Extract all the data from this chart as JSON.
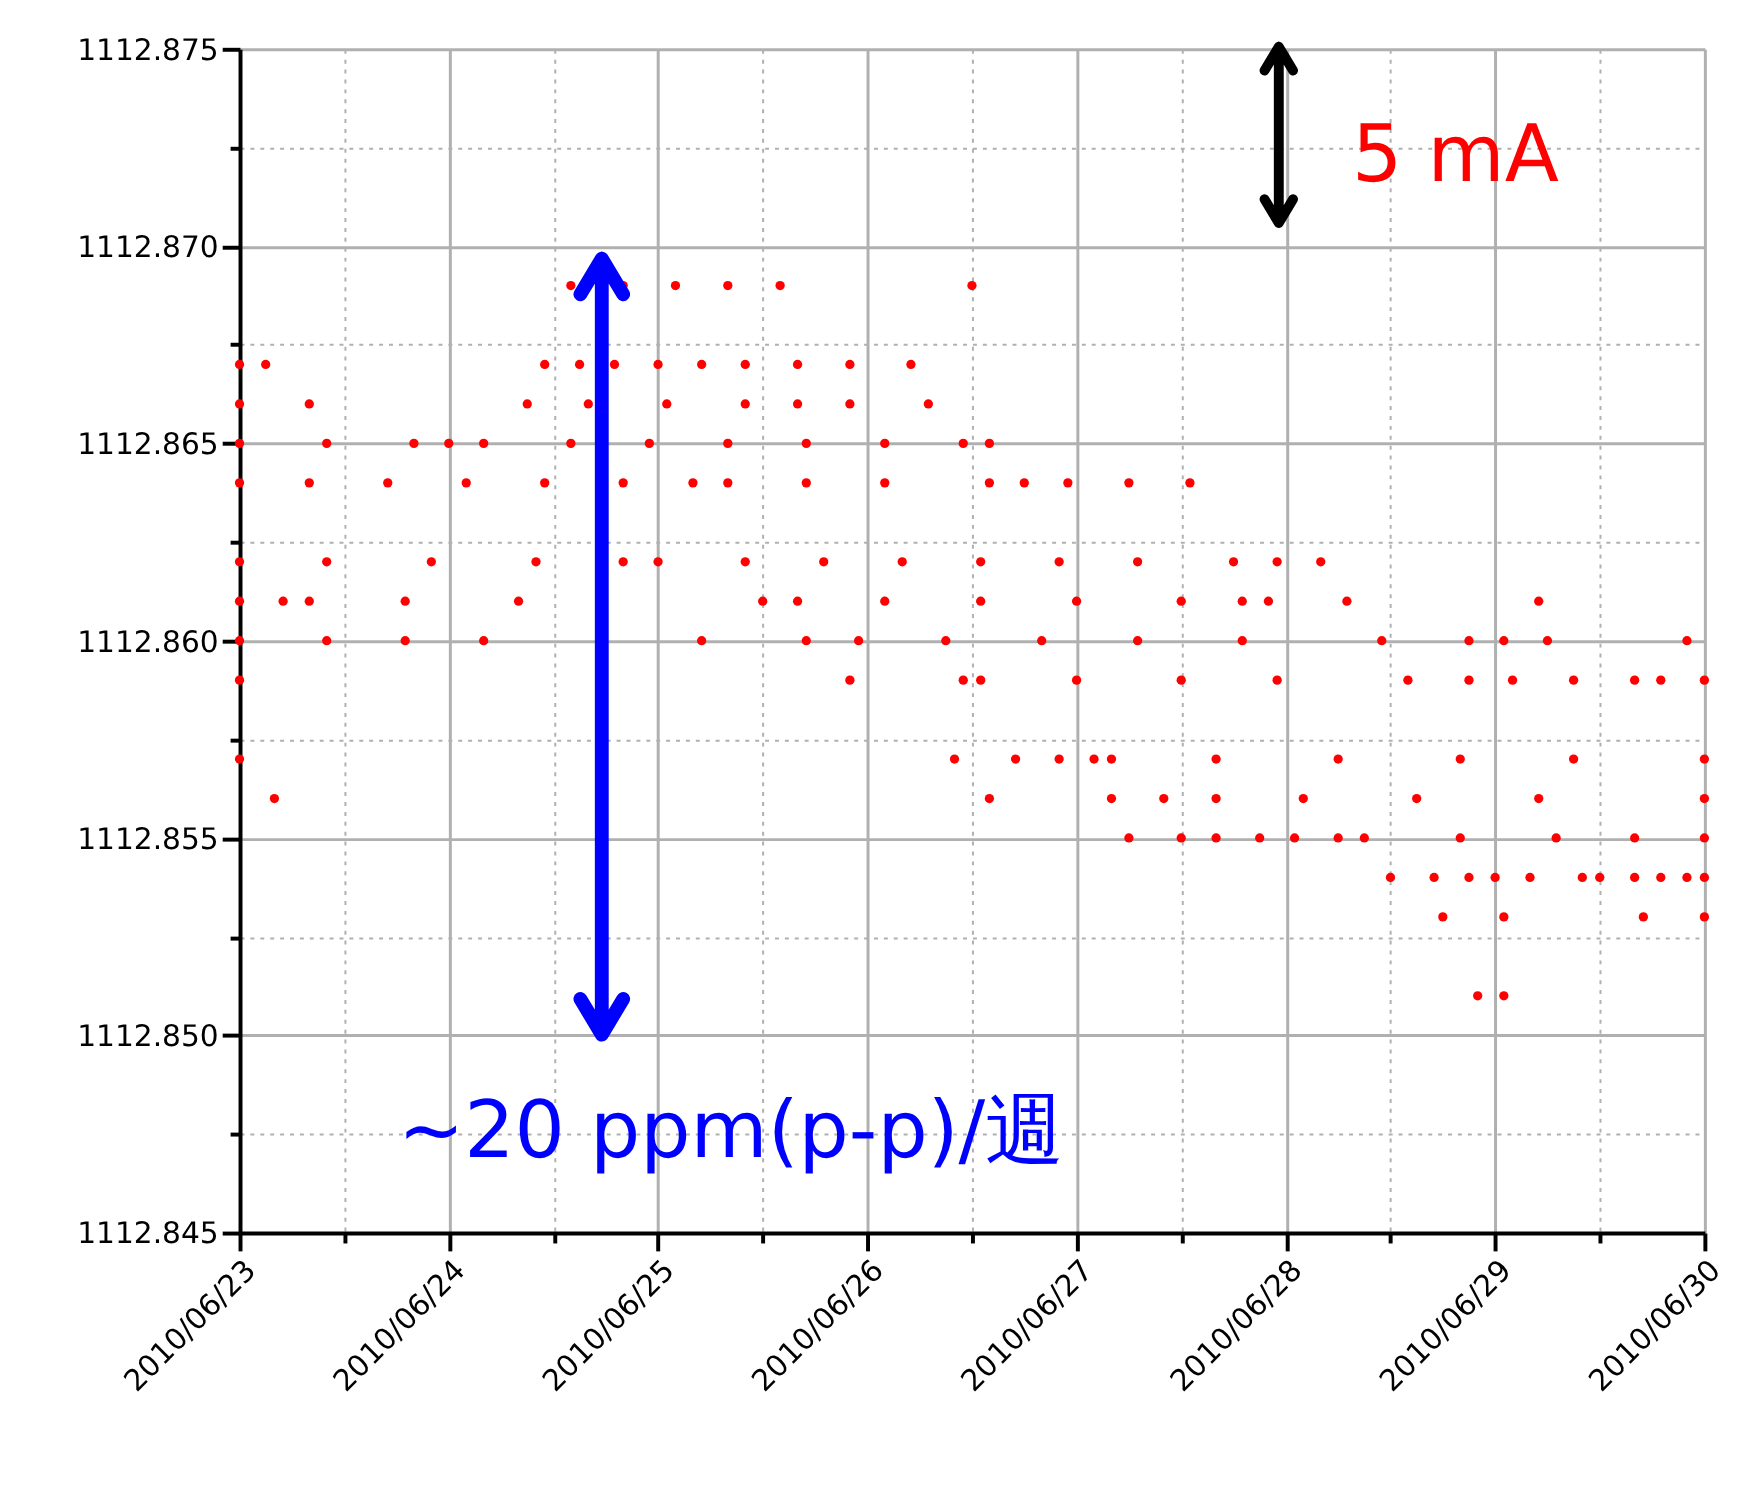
{
  "chart_data": {
    "type": "scatter",
    "annotations": [
      "5 mA",
      "~20 ppm(p-p)/週"
    ],
    "series": [
      {
        "color": "#ff0000",
        "x": [
          "2010-06-24T14:00",
          "2010-06-24T20:00",
          "2010-06-25T02:00",
          "2010-06-25T08:00",
          "2010-06-25T14:00",
          "2010-06-26T12:00",
          "2010-06-23T00:00",
          "2010-06-23T03:00",
          "2010-06-24T11:00",
          "2010-06-24T15:00",
          "2010-06-24T19:00",
          "2010-06-25T00:00",
          "2010-06-25T05:00",
          "2010-06-25T10:00",
          "2010-06-25T16:00",
          "2010-06-25T22:00",
          "2010-06-26T05:00",
          "2010-06-23T00:00",
          "2010-06-23T08:00",
          "2010-06-24T09:00",
          "2010-06-24T16:00",
          "2010-06-25T01:00",
          "2010-06-25T10:00",
          "2010-06-25T16:00",
          "2010-06-25T22:00",
          "2010-06-26T07:00",
          "2010-06-23T00:00",
          "2010-06-23T10:00",
          "2010-06-23T20:00",
          "2010-06-24T00:00",
          "2010-06-24T04:00",
          "2010-06-24T14:00",
          "2010-06-24T23:00",
          "2010-06-25T08:00",
          "2010-06-25T17:00",
          "2010-06-26T02:00",
          "2010-06-26T11:00",
          "2010-06-26T14:00",
          "2010-06-23T00:00",
          "2010-06-23T08:00",
          "2010-06-23T17:00",
          "2010-06-24T02:00",
          "2010-06-24T11:00",
          "2010-06-24T20:00",
          "2010-06-25T04:00",
          "2010-06-25T08:00",
          "2010-06-25T17:00",
          "2010-06-26T02:00",
          "2010-06-26T14:00",
          "2010-06-26T18:00",
          "2010-06-26T23:00",
          "2010-06-27T06:00",
          "2010-06-27T13:00",
          "2010-06-23T00:00",
          "2010-06-23T10:00",
          "2010-06-23T22:00",
          "2010-06-24T10:00",
          "2010-06-24T20:00",
          "2010-06-25T00:00",
          "2010-06-25T10:00",
          "2010-06-25T19:00",
          "2010-06-26T04:00",
          "2010-06-26T13:00",
          "2010-06-26T22:00",
          "2010-06-27T07:00",
          "2010-06-27T18:00",
          "2010-06-27T23:00",
          "2010-06-28T04:00",
          "2010-06-23T00:00",
          "2010-06-23T05:00",
          "2010-06-23T08:00",
          "2010-06-23T19:00",
          "2010-06-24T08:00",
          "2010-06-25T12:00",
          "2010-06-25T16:00",
          "2010-06-26T02:00",
          "2010-06-26T13:00",
          "2010-06-27T00:00",
          "2010-06-27T12:00",
          "2010-06-27T19:00",
          "2010-06-27T22:00",
          "2010-06-28T07:00",
          "2010-06-29T05:00",
          "2010-06-23T00:00",
          "2010-06-23T10:00",
          "2010-06-23T19:00",
          "2010-06-24T04:00",
          "2010-06-25T05:00",
          "2010-06-25T17:00",
          "2010-06-25T23:00",
          "2010-06-26T09:00",
          "2010-06-26T20:00",
          "2010-06-27T07:00",
          "2010-06-27T19:00",
          "2010-06-28T11:00",
          "2010-06-28T21:00",
          "2010-06-29T01:00",
          "2010-06-29T06:00",
          "2010-06-29T22:00",
          "2010-06-23T00:00",
          "2010-06-25T22:00",
          "2010-06-26T11:00",
          "2010-06-26T13:00",
          "2010-06-27T00:00",
          "2010-06-27T12:00",
          "2010-06-27T23:00",
          "2010-06-28T14:00",
          "2010-06-28T21:00",
          "2010-06-29T02:00",
          "2010-06-29T09:00",
          "2010-06-29T16:00",
          "2010-06-29T19:00",
          "2010-06-30T00:00",
          "2010-06-23T00:00",
          "2010-06-26T10:00",
          "2010-06-26T17:00",
          "2010-06-26T22:00",
          "2010-06-27T02:00",
          "2010-06-27T04:00",
          "2010-06-27T16:00",
          "2010-06-28T06:00",
          "2010-06-28T20:00",
          "2010-06-29T09:00",
          "2010-06-30T00:00",
          "2010-06-23T04:00",
          "2010-06-26T14:00",
          "2010-06-27T04:00",
          "2010-06-27T10:00",
          "2010-06-27T16:00",
          "2010-06-28T02:00",
          "2010-06-28T15:00",
          "2010-06-29T05:00",
          "2010-06-30T00:00",
          "2010-06-27T06:00",
          "2010-06-27T12:00",
          "2010-06-27T16:00",
          "2010-06-27T21:00",
          "2010-06-28T01:00",
          "2010-06-28T06:00",
          "2010-06-28T09:00",
          "2010-06-28T20:00",
          "2010-06-29T07:00",
          "2010-06-29T16:00",
          "2010-06-30T00:00",
          "2010-06-28T12:00",
          "2010-06-28T17:00",
          "2010-06-28T21:00",
          "2010-06-29T00:00",
          "2010-06-29T04:00",
          "2010-06-29T10:00",
          "2010-06-29T12:00",
          "2010-06-29T16:00",
          "2010-06-29T19:00",
          "2010-06-29T22:00",
          "2010-06-30T00:00",
          "2010-06-28T18:00",
          "2010-06-29T01:00",
          "2010-06-29T17:00",
          "2010-06-30T00:00",
          "2010-06-28T22:00",
          "2010-06-29T01:00"
        ],
        "values": [
          1112.869,
          1112.869,
          1112.869,
          1112.869,
          1112.869,
          1112.869,
          1112.867,
          1112.867,
          1112.867,
          1112.867,
          1112.867,
          1112.867,
          1112.867,
          1112.867,
          1112.867,
          1112.867,
          1112.867,
          1112.866,
          1112.866,
          1112.866,
          1112.866,
          1112.866,
          1112.866,
          1112.866,
          1112.866,
          1112.866,
          1112.865,
          1112.865,
          1112.865,
          1112.865,
          1112.865,
          1112.865,
          1112.865,
          1112.865,
          1112.865,
          1112.865,
          1112.865,
          1112.865,
          1112.864,
          1112.864,
          1112.864,
          1112.864,
          1112.864,
          1112.864,
          1112.864,
          1112.864,
          1112.864,
          1112.864,
          1112.864,
          1112.864,
          1112.864,
          1112.864,
          1112.864,
          1112.862,
          1112.862,
          1112.862,
          1112.862,
          1112.862,
          1112.862,
          1112.862,
          1112.862,
          1112.862,
          1112.862,
          1112.862,
          1112.862,
          1112.862,
          1112.862,
          1112.862,
          1112.861,
          1112.861,
          1112.861,
          1112.861,
          1112.861,
          1112.861,
          1112.861,
          1112.861,
          1112.861,
          1112.861,
          1112.861,
          1112.861,
          1112.861,
          1112.861,
          1112.861,
          1112.86,
          1112.86,
          1112.86,
          1112.86,
          1112.86,
          1112.86,
          1112.86,
          1112.86,
          1112.86,
          1112.86,
          1112.86,
          1112.86,
          1112.86,
          1112.86,
          1112.86,
          1112.86,
          1112.859,
          1112.859,
          1112.859,
          1112.859,
          1112.859,
          1112.859,
          1112.859,
          1112.859,
          1112.859,
          1112.859,
          1112.859,
          1112.859,
          1112.859,
          1112.859,
          1112.857,
          1112.857,
          1112.857,
          1112.857,
          1112.857,
          1112.857,
          1112.857,
          1112.857,
          1112.857,
          1112.857,
          1112.857,
          1112.856,
          1112.856,
          1112.856,
          1112.856,
          1112.856,
          1112.856,
          1112.856,
          1112.856,
          1112.856,
          1112.855,
          1112.855,
          1112.855,
          1112.855,
          1112.855,
          1112.855,
          1112.855,
          1112.855,
          1112.855,
          1112.855,
          1112.855,
          1112.854,
          1112.854,
          1112.854,
          1112.854,
          1112.854,
          1112.854,
          1112.854,
          1112.854,
          1112.854,
          1112.854,
          1112.854,
          1112.853,
          1112.853,
          1112.853,
          1112.853,
          1112.851,
          1112.851
        ]
      }
    ],
    "marker": "circle",
    "grid": true,
    "xlim": [
      "2010-06-23",
      "2010-06-30"
    ],
    "xticks": [
      {
        "value": "2010-06-23",
        "label": "2010/06/23"
      },
      {
        "value": "2010-06-23T12:00",
        "label": null
      },
      {
        "value": "2010-06-24",
        "label": "2010/06/24"
      },
      {
        "value": "2010-06-24T12:00",
        "label": null
      },
      {
        "value": "2010-06-25",
        "label": "2010/06/25"
      },
      {
        "value": "2010-06-25T12:00",
        "label": null
      },
      {
        "value": "2010-06-26",
        "label": "2010/06/26"
      },
      {
        "value": "2010-06-26T12:00",
        "label": null
      },
      {
        "value": "2010-06-27",
        "label": "2010/06/27"
      },
      {
        "value": "2010-06-27T12:00",
        "label": null
      },
      {
        "value": "2010-06-28",
        "label": "2010/06/28"
      },
      {
        "value": "2010-06-28T12:00",
        "label": null
      },
      {
        "value": "2010-06-29",
        "label": "2010/06/29"
      },
      {
        "value": "2010-06-29T12:00",
        "label": null
      },
      {
        "value": "2010-06-30",
        "label": "2010/06/30"
      }
    ],
    "ylim": [
      1112.845,
      1112.875
    ],
    "yticks": [
      {
        "value": 1112.845,
        "label": "1112.845"
      },
      {
        "value": 1112.8475,
        "label": null
      },
      {
        "value": 1112.85,
        "label": "1112.850"
      },
      {
        "value": 1112.8525,
        "label": null
      },
      {
        "value": 1112.855,
        "label": "1112.855"
      },
      {
        "value": 1112.8575,
        "label": null
      },
      {
        "value": 1112.86,
        "label": "1112.860"
      },
      {
        "value": 1112.8625,
        "label": null
      },
      {
        "value": 1112.865,
        "label": "1112.865"
      },
      {
        "value": 1112.8675,
        "label": null
      },
      {
        "value": 1112.87,
        "label": "1112.870"
      },
      {
        "value": 1112.8725,
        "label": null
      },
      {
        "value": 1112.875,
        "label": "1112.875"
      }
    ]
  }
}
